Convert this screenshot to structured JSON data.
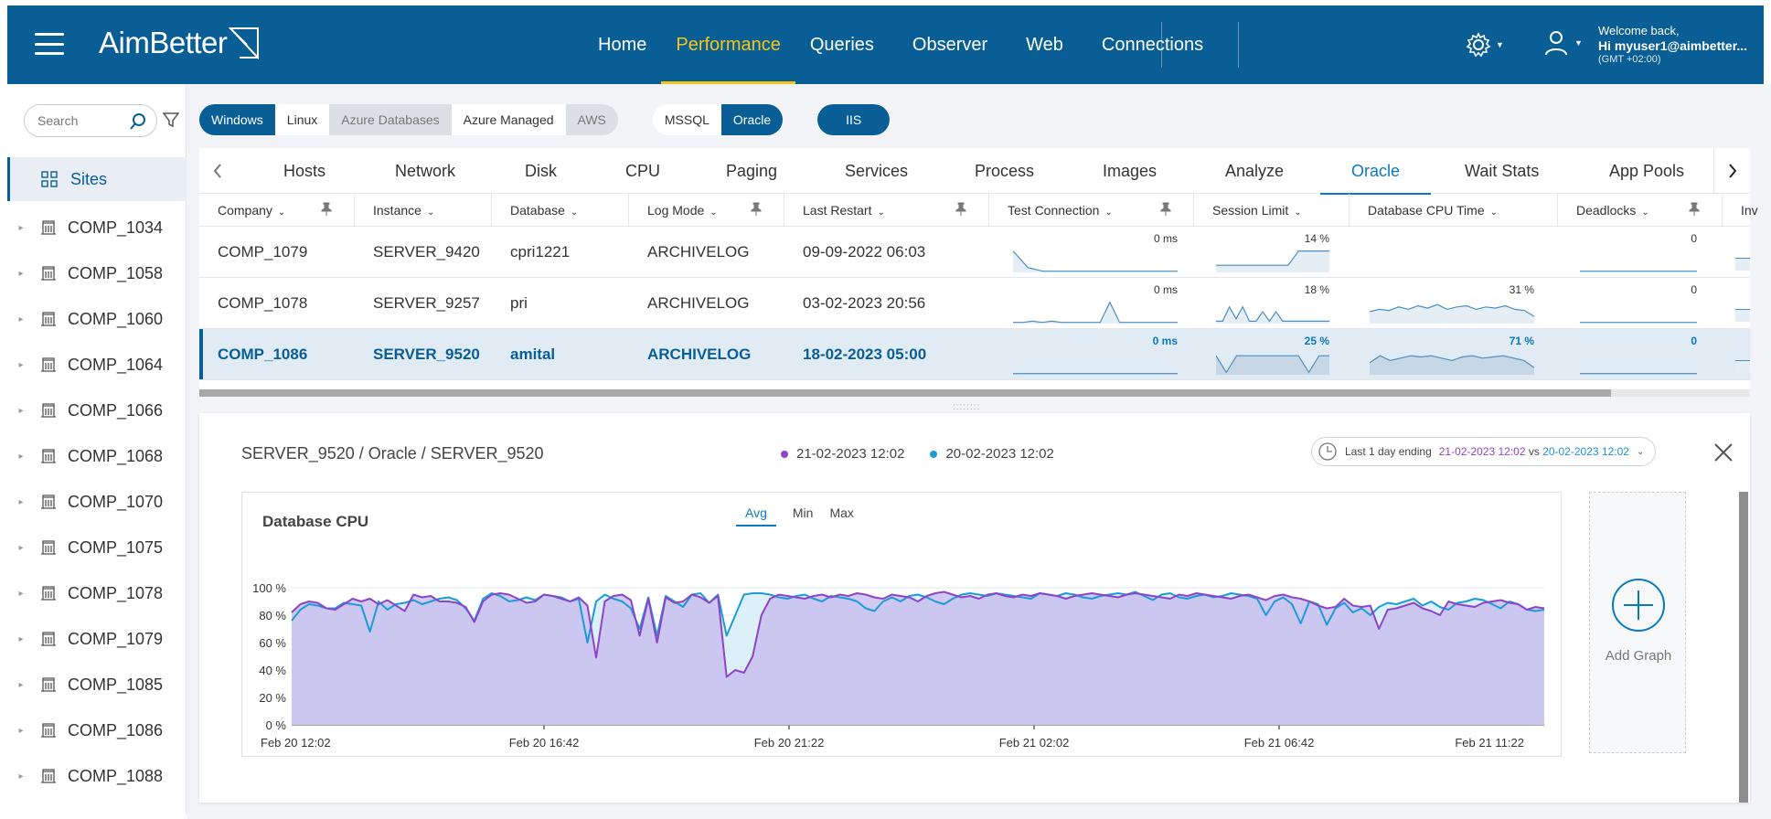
{
  "header": {
    "logo": "AimBetter",
    "nav": [
      "Home",
      "Performance",
      "Queries",
      "Observer",
      "Web",
      "Connections"
    ],
    "active_nav": "Performance",
    "welcome": "Welcome back,",
    "user": "Hi myuser1@aimbetter...",
    "tz": "(GMT +02:00)"
  },
  "sidebar": {
    "search_placeholder": "Search",
    "root": "Sites",
    "companies": [
      "COMP_1034",
      "COMP_1058",
      "COMP_1060",
      "COMP_1064",
      "COMP_1066",
      "COMP_1068",
      "COMP_1070",
      "COMP_1075",
      "COMP_1078",
      "COMP_1079",
      "COMP_1085",
      "COMP_1086",
      "COMP_1088"
    ]
  },
  "filters": {
    "os": [
      "Windows",
      "Linux",
      "Azure Databases",
      "Azure Managed",
      "AWS"
    ],
    "db": [
      "MSSQL",
      "Oracle"
    ],
    "web": "IIS"
  },
  "tabs": [
    "Hosts",
    "Network",
    "Disk",
    "CPU",
    "Paging",
    "Services",
    "Process",
    "Images",
    "Analyze",
    "Oracle",
    "Wait Stats",
    "App Pools"
  ],
  "active_tab": "Oracle",
  "columns": [
    "Company",
    "Instance",
    "Database",
    "Log Mode",
    "Last Restart",
    "Test Connection",
    "Session Limit",
    "Database CPU Time",
    "Deadlocks",
    "Inv"
  ],
  "rows": [
    {
      "company": "COMP_1079",
      "instance": "SERVER_9420",
      "database": "cpri1221",
      "log_mode": "ARCHIVELOG",
      "last_restart": "09-09-2022 06:03",
      "test_conn": "0 ms",
      "session_limit": "14 %",
      "cpu_time": "",
      "deadlocks": "0"
    },
    {
      "company": "COMP_1078",
      "instance": "SERVER_9257",
      "database": "pri",
      "log_mode": "ARCHIVELOG",
      "last_restart": "03-02-2023 20:56",
      "test_conn": "0 ms",
      "session_limit": "18 %",
      "cpu_time": "31 %",
      "deadlocks": "0"
    },
    {
      "company": "COMP_1086",
      "instance": "SERVER_9520",
      "database": "amital",
      "log_mode": "ARCHIVELOG",
      "last_restart": "18-02-2023 05:00",
      "test_conn": "0 ms",
      "session_limit": "25 %",
      "cpu_time": "71 %",
      "deadlocks": "0"
    }
  ],
  "detail": {
    "title": "SERVER_9520 / Oracle / SERVER_9520",
    "legend": [
      "21-02-2023 12:02",
      "20-02-2023 12:02"
    ],
    "range_prefix": "Last 1 day ending",
    "range_a": "21-02-2023 12:02",
    "range_vs": "vs",
    "range_b": "20-02-2023 12:02",
    "add_graph": "Add Graph",
    "colors": {
      "current": "#8e44c8",
      "previous": "#1c9bd9"
    }
  },
  "chart_data": {
    "type": "area",
    "title": "Database CPU",
    "agg_tabs": [
      "Avg",
      "Min",
      "Max"
    ],
    "active_agg": "Avg",
    "y_ticks": [
      "0 %",
      "20 %",
      "40 %",
      "60 %",
      "80 %",
      "100 %"
    ],
    "x_ticks": [
      "Feb 20 12:02",
      "Feb 20 16:42",
      "Feb 20 21:22",
      "Feb 21 02:02",
      "Feb 21 06:42",
      "Feb 21 11:22"
    ],
    "ylim": [
      0,
      100
    ],
    "series": [
      {
        "name": "21-02-2023 12:02",
        "values": [
          82,
          88,
          90,
          89,
          85,
          84,
          88,
          92,
          90,
          92,
          88,
          91,
          87,
          83,
          95,
          93,
          94,
          90,
          90,
          89,
          86,
          75,
          90,
          95,
          96,
          95,
          92,
          89,
          90,
          95,
          94,
          92,
          90,
          93,
          87,
          49,
          90,
          94,
          95,
          91,
          65,
          92,
          60,
          93,
          89,
          90,
          95,
          93,
          89,
          94,
          35,
          40,
          38,
          50,
          80,
          92,
          95,
          94,
          93,
          92,
          94,
          95,
          93,
          95,
          94,
          96,
          95,
          93,
          92,
          95,
          94,
          93,
          90,
          94,
          96,
          97,
          95,
          93,
          94,
          92,
          95,
          96,
          94,
          93,
          95,
          94,
          96,
          95,
          94,
          92,
          94,
          95,
          96,
          95,
          94,
          93,
          95,
          96,
          95,
          94,
          93,
          92,
          95,
          94,
          96,
          95,
          94,
          93,
          92,
          94,
          95,
          93,
          91,
          94,
          95,
          93,
          92,
          90,
          87,
          85,
          86,
          92,
          87,
          86,
          87,
          70,
          84,
          85,
          87,
          89,
          85,
          83,
          80,
          90,
          88,
          87,
          86,
          89,
          90,
          91,
          89,
          88,
          84,
          86,
          85
        ]
      },
      {
        "name": "20-02-2023 12:02",
        "values": [
          76,
          84,
          88,
          87,
          85,
          85,
          89,
          88,
          87,
          68,
          90,
          84,
          88,
          89,
          91,
          88,
          90,
          92,
          93,
          91,
          85,
          76,
          92,
          96,
          94,
          90,
          91,
          93,
          91,
          95,
          94,
          93,
          90,
          92,
          60,
          90,
          95,
          92,
          90,
          85,
          70,
          93,
          65,
          94,
          90,
          86,
          95,
          96,
          89,
          95,
          65,
          80,
          95,
          96,
          96,
          95,
          93,
          92,
          94,
          95,
          92,
          90,
          94,
          93,
          92,
          90,
          85,
          83,
          90,
          93,
          90,
          94,
          95,
          93,
          90,
          88,
          92,
          95,
          96,
          95,
          94,
          96,
          95,
          94,
          93,
          92,
          96,
          95,
          94,
          96,
          95,
          93,
          92,
          94,
          95,
          96,
          95,
          97,
          94,
          91,
          95,
          96,
          93,
          92,
          94,
          95,
          93,
          94,
          96,
          95,
          94,
          92,
          80,
          90,
          93,
          88,
          74,
          90,
          88,
          73,
          85,
          89,
          82,
          85,
          80,
          86,
          89,
          88,
          90,
          92,
          87,
          90,
          86,
          84,
          89,
          90,
          92,
          91,
          88,
          85,
          90,
          88,
          84,
          83,
          84
        ]
      }
    ]
  }
}
